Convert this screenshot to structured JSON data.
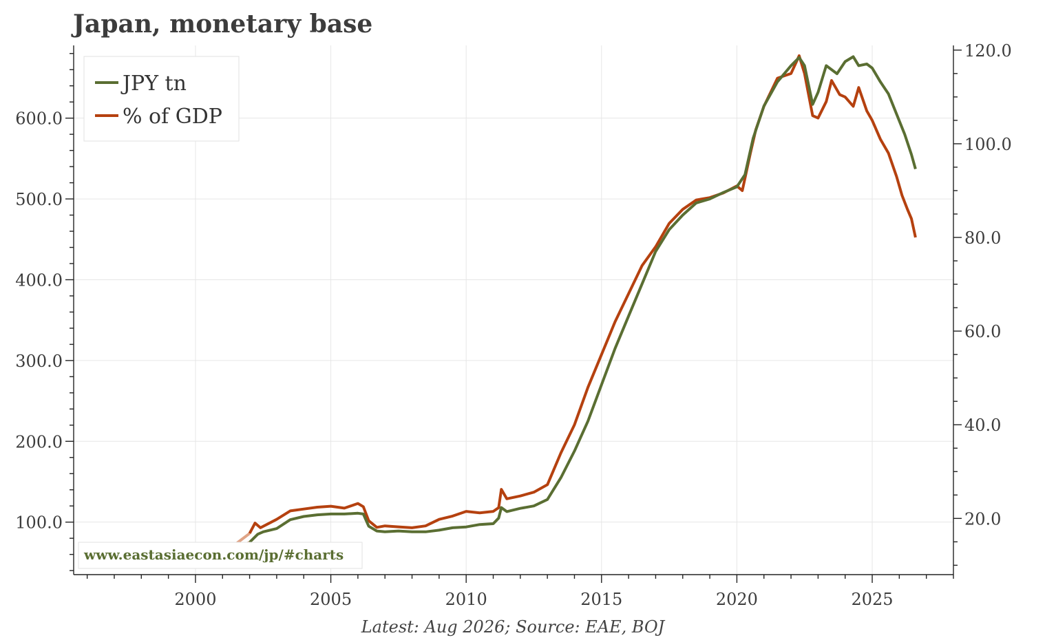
{
  "chart_data": {
    "type": "line",
    "title": "Japan, monetary base",
    "source_note": "Latest: Aug 2026; Source: EAE, BOJ",
    "watermark": "www.eastasiaecon.com/jp/#charts",
    "colors": {
      "jpy": "#5a6e32",
      "gdp": "#b5410f",
      "early_segment": "#e0a486",
      "watermark": "#5a6e32",
      "grid": "#e6e6e6"
    },
    "legend_position": "top-left",
    "grid": true,
    "x_axis": {
      "range": [
        1995.5,
        2028.0
      ],
      "ticks": [
        2000,
        2005,
        2010,
        2015,
        2020,
        2025
      ],
      "tick_labels": [
        "2000",
        "2005",
        "2010",
        "2015",
        "2020",
        "2025"
      ]
    },
    "y_left": {
      "range": [
        35,
        690
      ],
      "ticks": [
        100,
        200,
        300,
        400,
        500,
        600
      ],
      "tick_labels": [
        "100.0",
        "200.0",
        "300.0",
        "400.0",
        "500.0",
        "600.0"
      ],
      "minor_step": 20
    },
    "y_right": {
      "range": [
        8,
        121
      ],
      "ticks": [
        20,
        40,
        60,
        80,
        100,
        120
      ],
      "tick_labels": [
        "20.0",
        "40.0",
        "60.0",
        "80.0",
        "100.0",
        "120.0"
      ],
      "minor_step": 5
    },
    "early_segment_end": 2002.0,
    "series": [
      {
        "name": "JPY tn",
        "axis": "left",
        "points": [
          [
            1996.0,
            47
          ],
          [
            1996.5,
            48
          ],
          [
            1997.0,
            50
          ],
          [
            1997.5,
            51
          ],
          [
            1998.0,
            52
          ],
          [
            1998.5,
            54
          ],
          [
            1999.0,
            56
          ],
          [
            1999.5,
            58
          ],
          [
            1999.9,
            60
          ],
          [
            2000.0,
            66
          ],
          [
            2000.2,
            60
          ],
          [
            2000.5,
            62
          ],
          [
            2001.0,
            64
          ],
          [
            2001.5,
            68
          ],
          [
            2002.0,
            75
          ],
          [
            2002.3,
            85
          ],
          [
            2002.5,
            88
          ],
          [
            2003.0,
            92
          ],
          [
            2003.5,
            103
          ],
          [
            2004.0,
            107
          ],
          [
            2004.5,
            109
          ],
          [
            2005.0,
            110
          ],
          [
            2005.5,
            110
          ],
          [
            2006.0,
            111
          ],
          [
            2006.2,
            110
          ],
          [
            2006.4,
            95
          ],
          [
            2006.7,
            89
          ],
          [
            2007.0,
            88
          ],
          [
            2007.5,
            89
          ],
          [
            2008.0,
            88
          ],
          [
            2008.5,
            88
          ],
          [
            2009.0,
            90
          ],
          [
            2009.5,
            93
          ],
          [
            2010.0,
            94
          ],
          [
            2010.5,
            97
          ],
          [
            2011.0,
            98
          ],
          [
            2011.2,
            105
          ],
          [
            2011.3,
            118
          ],
          [
            2011.5,
            113
          ],
          [
            2012.0,
            117
          ],
          [
            2012.5,
            120
          ],
          [
            2013.0,
            128
          ],
          [
            2013.5,
            155
          ],
          [
            2014.0,
            188
          ],
          [
            2014.5,
            225
          ],
          [
            2015.0,
            270
          ],
          [
            2015.5,
            315
          ],
          [
            2016.0,
            355
          ],
          [
            2016.5,
            395
          ],
          [
            2017.0,
            435
          ],
          [
            2017.5,
            462
          ],
          [
            2018.0,
            480
          ],
          [
            2018.5,
            495
          ],
          [
            2019.0,
            500
          ],
          [
            2019.5,
            508
          ],
          [
            2020.0,
            515
          ],
          [
            2020.3,
            530
          ],
          [
            2020.6,
            575
          ],
          [
            2021.0,
            615
          ],
          [
            2021.5,
            645
          ],
          [
            2022.0,
            665
          ],
          [
            2022.3,
            675
          ],
          [
            2022.5,
            665
          ],
          [
            2022.8,
            617
          ],
          [
            2023.0,
            632
          ],
          [
            2023.3,
            665
          ],
          [
            2023.7,
            655
          ],
          [
            2024.0,
            670
          ],
          [
            2024.3,
            676
          ],
          [
            2024.5,
            665
          ],
          [
            2024.8,
            667
          ],
          [
            2025.0,
            662
          ],
          [
            2025.3,
            645
          ],
          [
            2025.6,
            630
          ],
          [
            2025.9,
            605
          ],
          [
            2026.2,
            580
          ],
          [
            2026.45,
            555
          ],
          [
            2026.6,
            537
          ]
        ]
      },
      {
        "name": "% of GDP",
        "axis": "right",
        "points": [
          [
            1996.0,
            10.0
          ],
          [
            1997.0,
            10.6
          ],
          [
            1998.0,
            11.2
          ],
          [
            1999.0,
            12.2
          ],
          [
            1999.9,
            13.0
          ],
          [
            2000.0,
            14.2
          ],
          [
            2000.2,
            13.0
          ],
          [
            2001.0,
            13.6
          ],
          [
            2001.5,
            14.6
          ],
          [
            2002.0,
            16.8
          ],
          [
            2002.2,
            19.0
          ],
          [
            2002.4,
            18.0
          ],
          [
            2003.0,
            19.8
          ],
          [
            2003.5,
            21.6
          ],
          [
            2004.0,
            22.0
          ],
          [
            2004.5,
            22.4
          ],
          [
            2005.0,
            22.6
          ],
          [
            2005.5,
            22.2
          ],
          [
            2006.0,
            23.2
          ],
          [
            2006.2,
            22.5
          ],
          [
            2006.4,
            19.5
          ],
          [
            2006.7,
            18.1
          ],
          [
            2007.0,
            18.4
          ],
          [
            2007.5,
            18.2
          ],
          [
            2008.0,
            18.0
          ],
          [
            2008.5,
            18.4
          ],
          [
            2009.0,
            19.8
          ],
          [
            2009.5,
            20.5
          ],
          [
            2010.0,
            21.5
          ],
          [
            2010.5,
            21.2
          ],
          [
            2011.0,
            21.5
          ],
          [
            2011.2,
            22.3
          ],
          [
            2011.3,
            26.2
          ],
          [
            2011.5,
            24.2
          ],
          [
            2012.0,
            24.8
          ],
          [
            2012.5,
            25.6
          ],
          [
            2013.0,
            27.2
          ],
          [
            2013.5,
            34.0
          ],
          [
            2014.0,
            40.0
          ],
          [
            2014.5,
            48.0
          ],
          [
            2015.0,
            55.0
          ],
          [
            2015.5,
            62.0
          ],
          [
            2016.0,
            68.0
          ],
          [
            2016.5,
            74.0
          ],
          [
            2017.0,
            78.0
          ],
          [
            2017.5,
            83.0
          ],
          [
            2018.0,
            86.0
          ],
          [
            2018.5,
            88.0
          ],
          [
            2019.0,
            88.5
          ],
          [
            2019.5,
            89.5
          ],
          [
            2020.0,
            91.0
          ],
          [
            2020.2,
            90.0
          ],
          [
            2020.5,
            98.0
          ],
          [
            2020.7,
            103.0
          ],
          [
            2021.0,
            108.0
          ],
          [
            2021.5,
            114.0
          ],
          [
            2022.0,
            115.0
          ],
          [
            2022.3,
            118.8
          ],
          [
            2022.5,
            115.0
          ],
          [
            2022.8,
            106.0
          ],
          [
            2023.0,
            105.5
          ],
          [
            2023.3,
            109.0
          ],
          [
            2023.5,
            113.5
          ],
          [
            2023.8,
            110.5
          ],
          [
            2024.0,
            110.0
          ],
          [
            2024.3,
            108.0
          ],
          [
            2024.5,
            112.0
          ],
          [
            2024.8,
            107.0
          ],
          [
            2025.0,
            105.0
          ],
          [
            2025.3,
            101.0
          ],
          [
            2025.6,
            98.0
          ],
          [
            2025.9,
            93.0
          ],
          [
            2026.1,
            89.0
          ],
          [
            2026.3,
            86.0
          ],
          [
            2026.45,
            84.0
          ],
          [
            2026.6,
            80.0
          ]
        ]
      }
    ]
  }
}
